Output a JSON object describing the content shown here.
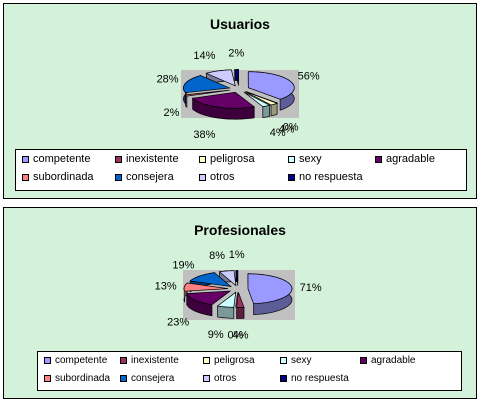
{
  "colors": {
    "panel_bg": "#d4f2d9",
    "plot_bg": "#c0c0c0"
  },
  "legend_labels": [
    "competente",
    "inexistente",
    "peligrosa",
    "sexy",
    "agradable",
    "subordinada",
    "consejera",
    "otros",
    "no respuesta"
  ],
  "legend_colors": [
    "#9999ff",
    "#993366",
    "#ffffcc",
    "#ccffff",
    "#660066",
    "#ff8080",
    "#0066cc",
    "#ccccff",
    "#000080"
  ],
  "chart_data": [
    {
      "type": "pie",
      "title": "Usuarios",
      "categories": [
        "competente",
        "inexistente",
        "peligrosa",
        "sexy",
        "agradable",
        "subordinada",
        "consejera",
        "otros",
        "no respuesta"
      ],
      "values": [
        56,
        0,
        4,
        4,
        38,
        2,
        28,
        14,
        2
      ],
      "data_labels": [
        "56%",
        "0%",
        "4%",
        "4%",
        "38%",
        "2%",
        "28%",
        "14%",
        "2%"
      ],
      "legend": "bottom"
    },
    {
      "type": "pie",
      "title": "Profesionales",
      "categories": [
        "competente",
        "inexistente",
        "peligrosa",
        "sexy",
        "agradable",
        "subordinada",
        "consejera",
        "otros",
        "no respuesta"
      ],
      "values": [
        71,
        4,
        0,
        9,
        23,
        13,
        19,
        8,
        1
      ],
      "data_labels": [
        "71%",
        "4%",
        "0%",
        "9%",
        "23%",
        "13%",
        "19%",
        "8%",
        "1%"
      ],
      "legend": "bottom"
    }
  ]
}
